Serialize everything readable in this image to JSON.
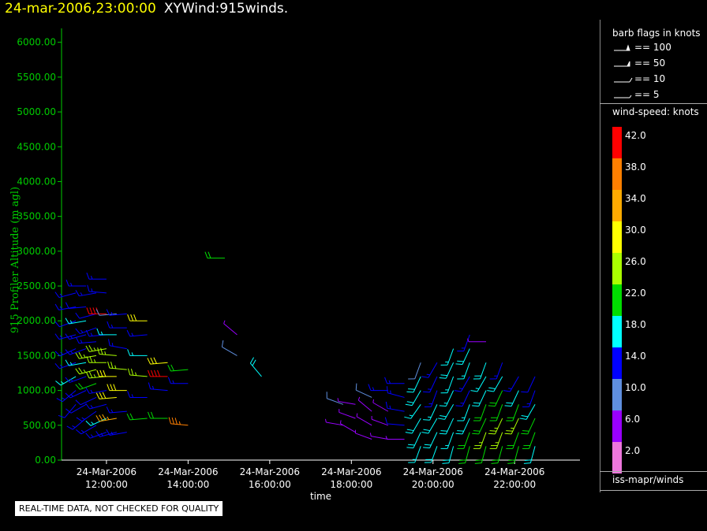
{
  "title": {
    "timestamp": "24-mar-2006,23:00:00",
    "main": "XYWind:915winds."
  },
  "qc_note": "REAL-TIME DATA, NOT CHECKED FOR QUALITY",
  "legend": {
    "barb_header": "barb flags in knots",
    "barbs": [
      {
        "label": "== 100",
        "knots": 100
      },
      {
        "label": "== 50",
        "knots": 50
      },
      {
        "label": "== 10",
        "knots": 10
      },
      {
        "label": "== 5",
        "knots": 5
      }
    ],
    "speed_header": "wind-speed: knots",
    "speed_levels": [
      {
        "label": "42.0",
        "color": "#ff0000"
      },
      {
        "label": "38.0",
        "color": "#ff7f00"
      },
      {
        "label": "34.0",
        "color": "#ffaa00"
      },
      {
        "label": "30.0",
        "color": "#ffff00"
      },
      {
        "label": "26.0",
        "color": "#aaff00"
      },
      {
        "label": "22.0",
        "color": "#00dd00"
      },
      {
        "label": "18.0",
        "color": "#00ffff"
      },
      {
        "label": "14.0",
        "color": "#0000ff"
      },
      {
        "label": "10.0",
        "color": "#5f8fdf"
      },
      {
        "label": "6.0",
        "color": "#9900ff"
      },
      {
        "label": "2.0",
        "color": "#ee77dd"
      }
    ],
    "footer": "iss-mapr/winds"
  },
  "chart_data": {
    "type": "scatter",
    "subtype": "wind-barbs",
    "ylabel": "915 Profiler Altitude (m agl)",
    "xlabel": "time",
    "ylim": [
      0,
      6200
    ],
    "xlim_hours": [
      10.9,
      23.6
    ],
    "y_ticks": [
      "0.00",
      "500.00",
      "1000.00",
      "1500.00",
      "2000.00",
      "2500.00",
      "3000.00",
      "3500.00",
      "4000.00",
      "4500.00",
      "5000.00",
      "5500.00",
      "6000.00"
    ],
    "x_ticks": [
      {
        "hour": 12,
        "date": "24-Mar-2006",
        "time": "12:00:00"
      },
      {
        "hour": 14,
        "date": "24-Mar-2006",
        "time": "14:00:00"
      },
      {
        "hour": 16,
        "date": "24-Mar-2006",
        "time": "16:00:00"
      },
      {
        "hour": 18,
        "date": "24-Mar-2006",
        "time": "18:00:00"
      },
      {
        "hour": 20,
        "date": "24-Mar-2006",
        "time": "20:00:00"
      },
      {
        "hour": 22,
        "date": "24-Mar-2006",
        "time": "22:00:00"
      }
    ],
    "grid": false,
    "legend_position": "right",
    "axis_color": "#00cc00",
    "profiles": [
      {
        "hour": 11.25,
        "alts": [
          800,
          1000,
          1200,
          1400,
          1600,
          1800,
          2000,
          2200,
          2400
        ],
        "speeds": [
          12,
          14,
          16,
          14,
          13,
          15,
          12,
          14,
          13
        ],
        "dirs": [
          220,
          230,
          240,
          250,
          245,
          255,
          250,
          260,
          255
        ]
      },
      {
        "hour": 11.5,
        "alts": [
          600,
          800,
          1000,
          1200,
          1400,
          1600,
          1800,
          2000,
          2200,
          2500
        ],
        "speeds": [
          14,
          12,
          13,
          15,
          17,
          14,
          13,
          16,
          12,
          14
        ],
        "dirs": [
          230,
          240,
          245,
          250,
          260,
          250,
          255,
          260,
          265,
          270
        ]
      },
      {
        "hour": 11.75,
        "alts": [
          500,
          700,
          900,
          1100,
          1300,
          1500,
          1700,
          1900,
          2100,
          2400
        ],
        "speeds": [
          13,
          14,
          12,
          20,
          24,
          26,
          14,
          13,
          12,
          14
        ],
        "dirs": [
          240,
          235,
          245,
          250,
          255,
          260,
          265,
          250,
          255,
          260
        ]
      },
      {
        "hour": 12.0,
        "alts": [
          400,
          600,
          800,
          1000,
          1200,
          1400,
          1600,
          1800,
          2100,
          2400,
          2600
        ],
        "speeds": [
          14,
          16,
          13,
          15,
          24,
          27,
          25,
          15,
          42,
          13,
          14
        ],
        "dirs": [
          250,
          245,
          255,
          260,
          265,
          270,
          260,
          265,
          270,
          275,
          270
        ]
      },
      {
        "hour": 12.25,
        "alts": [
          400,
          600,
          900,
          1200,
          1500,
          1800,
          2100
        ],
        "speeds": [
          14,
          34,
          30,
          28,
          24,
          16,
          9
        ],
        "dirs": [
          255,
          260,
          265,
          270,
          275,
          270,
          265
        ]
      },
      {
        "hour": 12.5,
        "alts": [
          400,
          700,
          1000,
          1300,
          1600,
          1900,
          2100
        ],
        "speeds": [
          14,
          13,
          30,
          26,
          15,
          14,
          13
        ],
        "dirs": [
          260,
          265,
          270,
          275,
          280,
          270,
          265
        ]
      },
      {
        "hour": 13.0,
        "alts": [
          600,
          900,
          1200,
          1500,
          1800,
          2000
        ],
        "speeds": [
          22,
          14,
          27,
          16,
          14,
          28
        ],
        "dirs": [
          265,
          270,
          275,
          270,
          265,
          270
        ]
      },
      {
        "hour": 13.5,
        "alts": [
          600,
          1000,
          1200,
          1400
        ],
        "speeds": [
          22,
          14,
          42,
          30
        ],
        "dirs": [
          270,
          275,
          270,
          265
        ]
      },
      {
        "hour": 14.0,
        "alts": [
          500,
          1100,
          1300
        ],
        "speeds": [
          36,
          14,
          20
        ],
        "dirs": [
          275,
          270,
          265
        ]
      },
      {
        "hour": 14.9,
        "alts": [
          2900
        ],
        "speeds": [
          22
        ],
        "dirs": [
          270
        ]
      },
      {
        "hour": 15.2,
        "alts": [
          1500,
          1800
        ],
        "speeds": [
          8,
          7
        ],
        "dirs": [
          300,
          310
        ]
      },
      {
        "hour": 15.8,
        "alts": [
          1200
        ],
        "speeds": [
          18
        ],
        "dirs": [
          320
        ]
      },
      {
        "hour": 17.8,
        "alts": [
          500,
          800
        ],
        "speeds": [
          6,
          8
        ],
        "dirs": [
          280,
          290
        ]
      },
      {
        "hour": 18.1,
        "alts": [
          400,
          600,
          800
        ],
        "speeds": [
          4,
          7,
          5
        ],
        "dirs": [
          300,
          290,
          280
        ]
      },
      {
        "hour": 18.5,
        "alts": [
          300,
          500,
          700,
          900
        ],
        "speeds": [
          6,
          5,
          4,
          8
        ],
        "dirs": [
          290,
          300,
          310,
          295
        ]
      },
      {
        "hour": 18.9,
        "alts": [
          300,
          500,
          700,
          1000
        ],
        "speeds": [
          5,
          6,
          7,
          14
        ],
        "dirs": [
          280,
          290,
          300,
          270
        ]
      },
      {
        "hour": 19.3,
        "alts": [
          300,
          500,
          700,
          900,
          1100
        ],
        "speeds": [
          6,
          12,
          14,
          13,
          15
        ],
        "dirs": [
          270,
          275,
          280,
          285,
          270
        ]
      },
      {
        "hour": 19.7,
        "alts": [
          200,
          400,
          600,
          800,
          1000,
          1200,
          1400
        ],
        "speeds": [
          16,
          18,
          18,
          17,
          19,
          18,
          8
        ],
        "dirs": [
          200,
          205,
          210,
          215,
          210,
          205,
          200
        ]
      },
      {
        "hour": 20.1,
        "alts": [
          200,
          400,
          600,
          800,
          1000,
          1200,
          1400
        ],
        "speeds": [
          18,
          19,
          18,
          17,
          15,
          14,
          13
        ],
        "dirs": [
          200,
          205,
          210,
          205,
          200,
          205,
          210
        ]
      },
      {
        "hour": 20.5,
        "alts": [
          200,
          400,
          600,
          800,
          1000,
          1200,
          1400,
          1600
        ],
        "speeds": [
          18,
          17,
          19,
          18,
          17,
          16,
          18,
          17
        ],
        "dirs": [
          195,
          200,
          205,
          210,
          205,
          200,
          205,
          200
        ]
      },
      {
        "hour": 20.9,
        "alts": [
          200,
          400,
          600,
          800,
          1000,
          1200,
          1400,
          1600,
          1800
        ],
        "speeds": [
          22,
          20,
          18,
          17,
          15,
          14,
          16,
          18,
          14
        ],
        "dirs": [
          195,
          200,
          205,
          200,
          205,
          210,
          200,
          205,
          200
        ]
      },
      {
        "hour": 21.3,
        "alts": [
          200,
          400,
          600,
          800,
          1000,
          1200,
          1400,
          1700
        ],
        "speeds": [
          22,
          24,
          22,
          20,
          18,
          17,
          18,
          7
        ],
        "dirs": [
          195,
          200,
          205,
          200,
          205,
          210,
          200,
          270
        ]
      },
      {
        "hour": 21.7,
        "alts": [
          200,
          400,
          600,
          800,
          1000,
          1200,
          1400
        ],
        "speeds": [
          22,
          24,
          26,
          22,
          20,
          18,
          14
        ],
        "dirs": [
          195,
          200,
          205,
          200,
          205,
          210,
          200
        ]
      },
      {
        "hour": 22.1,
        "alts": [
          200,
          400,
          600,
          800,
          1000,
          1200
        ],
        "speeds": [
          20,
          22,
          26,
          22,
          18,
          14
        ],
        "dirs": [
          195,
          200,
          205,
          200,
          205,
          210
        ]
      },
      {
        "hour": 22.5,
        "alts": [
          200,
          400,
          600,
          800,
          1000,
          1200
        ],
        "speeds": [
          18,
          20,
          22,
          18,
          14,
          12
        ],
        "dirs": [
          195,
          200,
          205,
          210,
          200,
          205
        ]
      }
    ]
  }
}
